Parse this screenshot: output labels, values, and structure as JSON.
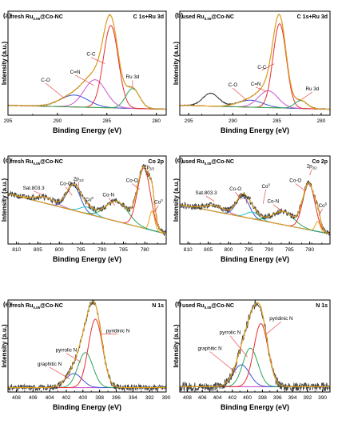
{
  "figure": {
    "x_axis_title": "Binding Energy (eV)",
    "y_axis_title": "Intensity (a.u.)"
  },
  "chart_data": [
    {
      "id": "a",
      "type": "line",
      "letter": "(a)",
      "sample_prefix": "fresh Ru",
      "sample_sub": "0.05",
      "sample_suffix": "@Co-NC",
      "region": "C 1s+Ru 3d",
      "xlim": [
        295,
        279
      ],
      "xticks": [
        295,
        290,
        285,
        280
      ],
      "ylim": [
        0,
        1.05
      ],
      "background": {
        "color": "#e8a317",
        "y": [
          0.1,
          0.06
        ]
      },
      "experimental": {
        "color": "#222222",
        "noise": 0.004,
        "seed": 11
      },
      "fit": {
        "color": "#e8a317"
      },
      "peaks": [
        {
          "center": 288.3,
          "height": 0.12,
          "width": 1.4,
          "color": "#3a55d6"
        },
        {
          "center": 286.2,
          "height": 0.28,
          "width": 1.1,
          "color": "#cc55cc"
        },
        {
          "center": 284.6,
          "height": 0.83,
          "width": 0.75,
          "color": "#e83030"
        },
        {
          "center": 282.4,
          "height": 0.2,
          "width": 0.7,
          "color": "#2aa55a"
        }
      ],
      "labels": [
        {
          "text": "C-C",
          "x": 286.6,
          "y": 0.6,
          "lx": 285.2,
          "ly": 0.52
        },
        {
          "text": "C=N",
          "x": 288.2,
          "y": 0.42,
          "lx": 286.3,
          "ly": 0.3
        },
        {
          "text": "C-O",
          "x": 291.2,
          "y": 0.34,
          "lx": 289.3,
          "ly": 0.17
        },
        {
          "text": "Ru 3d",
          "x": 282.4,
          "y": 0.37,
          "lx": 282.4,
          "ly": 0.28
        }
      ]
    },
    {
      "id": "b",
      "type": "line",
      "letter": "(b)",
      "sample_prefix": "used Ru",
      "sample_sub": "0.05",
      "sample_suffix": "@Co-NC",
      "region": "C 1s+Ru 3d",
      "xlim": [
        296,
        279
      ],
      "xticks": [
        295,
        290,
        285,
        280
      ],
      "ylim": [
        0,
        1.05
      ],
      "background": {
        "color": "#e8a317",
        "y": [
          0.1,
          0.06
        ]
      },
      "experimental": {
        "color": "#222222",
        "noise": 0.004,
        "seed": 12
      },
      "fit": {
        "color": "#e8a317"
      },
      "extra_raw_peaks": [
        {
          "center": 292.5,
          "height": 0.13,
          "width": 0.9
        }
      ],
      "peaks": [
        {
          "center": 288.0,
          "height": 0.07,
          "width": 1.4,
          "color": "#3a55d6"
        },
        {
          "center": 286.0,
          "height": 0.17,
          "width": 1.1,
          "color": "#cc55cc"
        },
        {
          "center": 284.7,
          "height": 0.85,
          "width": 0.75,
          "color": "#e83030"
        },
        {
          "center": 282.3,
          "height": 0.08,
          "width": 0.7,
          "color": "#2aa55a"
        }
      ],
      "labels": [
        {
          "text": "C-C",
          "x": 286.7,
          "y": 0.47,
          "lx": 285.3,
          "ly": 0.52
        },
        {
          "text": "C=N",
          "x": 287.4,
          "y": 0.3,
          "lx": 286.2,
          "ly": 0.24
        },
        {
          "text": "C-O",
          "x": 290.0,
          "y": 0.29,
          "lx": 288.4,
          "ly": 0.15
        },
        {
          "text": "Ru 3d",
          "x": 281.0,
          "y": 0.25,
          "lx": 282.2,
          "ly": 0.16
        }
      ]
    },
    {
      "id": "c",
      "type": "line",
      "letter": "(c)",
      "sample_prefix": "fresh Ru",
      "sample_sub": "0.05",
      "sample_suffix": "@Co-NC",
      "region": "Co 2p",
      "xlim": [
        812,
        775
      ],
      "xticks": [
        810,
        805,
        800,
        795,
        790,
        785,
        780
      ],
      "ylim": [
        0,
        1.05
      ],
      "background": {
        "color": "#20c0c8",
        "y": [
          0.6,
          0.12
        ]
      },
      "experimental": {
        "color": "#444444",
        "noise": 0.035,
        "seed": 21
      },
      "fit": {
        "color": "#e8a317"
      },
      "peaks": [
        {
          "center": 803.3,
          "height": 0.07,
          "width": 2.5,
          "color": "#c060c0"
        },
        {
          "center": 796.7,
          "height": 0.3,
          "width": 1.6,
          "color": "#3a55d6"
        },
        {
          "center": 793.5,
          "height": 0.08,
          "width": 1.6,
          "color": "#20c0c8"
        },
        {
          "center": 786.5,
          "height": 0.24,
          "width": 2.6,
          "color": "#2aa55a"
        },
        {
          "center": 780.2,
          "height": 0.72,
          "width": 1.5,
          "color": "#e83030"
        },
        {
          "center": 778.3,
          "height": 0.23,
          "width": 0.6,
          "color": "#e8a317"
        }
      ],
      "labels": [
        {
          "text": "Sat.803.3",
          "x": 806.0,
          "y": 0.65,
          "lx": 803.5,
          "ly": 0.58
        },
        {
          "text": "Co-O",
          "x": 798.5,
          "y": 0.7,
          "lx": 797.0,
          "ly": 0.58
        },
        {
          "text": "2p",
          "sub": "1/2",
          "x": 795.5,
          "y": 0.76,
          "lx": 795.5,
          "ly": 0.68
        },
        {
          "text": "Co",
          "sup": "0",
          "x": 793.0,
          "y": 0.51,
          "lx": 793.0,
          "ly": 0.43
        },
        {
          "text": "Co-N",
          "x": 788.5,
          "y": 0.57,
          "lx": 787.0,
          "ly": 0.46
        },
        {
          "text": "Co-O",
          "x": 783.0,
          "y": 0.74,
          "lx": 781.2,
          "ly": 0.65
        },
        {
          "text": "2p",
          "sub": "3/2",
          "x": 779.0,
          "y": 0.9,
          "lx": 779.8,
          "ly": 0.82
        },
        {
          "text": "Co",
          "sup": "0",
          "x": 776.8,
          "y": 0.48,
          "lx": 777.8,
          "ly": 0.38
        }
      ]
    },
    {
      "id": "d",
      "type": "line",
      "letter": "(d)",
      "sample_prefix": "used Ru",
      "sample_sub": "0.05",
      "sample_suffix": "@Co-NC",
      "region": "Co 2p",
      "xlim": [
        812,
        775
      ],
      "xticks": [
        810,
        805,
        800,
        795,
        790,
        785,
        780
      ],
      "ylim": [
        0,
        1.05
      ],
      "background": {
        "color": "#20c0c8",
        "y": [
          0.47,
          0.12
        ]
      },
      "experimental": {
        "color": "#444444",
        "noise": 0.035,
        "seed": 22
      },
      "fit": {
        "color": "#e8a317"
      },
      "peaks": [
        {
          "center": 803.3,
          "height": 0.07,
          "width": 2.5,
          "color": "#c060c0"
        },
        {
          "center": 796.5,
          "height": 0.25,
          "width": 1.6,
          "color": "#3a55d6"
        },
        {
          "center": 794.0,
          "height": 0.08,
          "width": 1.6,
          "color": "#20c0c8"
        },
        {
          "center": 786.5,
          "height": 0.16,
          "width": 2.6,
          "color": "#2aa55a"
        },
        {
          "center": 780.2,
          "height": 0.55,
          "width": 1.5,
          "color": "#e83030"
        },
        {
          "center": 778.0,
          "height": 0.12,
          "width": 0.6,
          "color": "#e8a317"
        }
      ],
      "labels": [
        {
          "text": "Sat.803.3",
          "x": 805.5,
          "y": 0.59,
          "lx": 803.5,
          "ly": 0.51
        },
        {
          "text": "Co-O",
          "x": 798.3,
          "y": 0.64,
          "lx": 797.0,
          "ly": 0.53
        },
        {
          "text": "2p",
          "sub": "1/2",
          "x": 795.7,
          "y": 0.55,
          "lx": 795.5,
          "ly": 0.48
        },
        {
          "text": "Co-N",
          "x": 789.0,
          "y": 0.49,
          "lx": 787.0,
          "ly": 0.4
        },
        {
          "text": "Co",
          "sup": "0",
          "x": 790.8,
          "y": 0.67,
          "lx": 791.5,
          "ly": 0.48
        },
        {
          "text": "Co-O",
          "x": 783.5,
          "y": 0.74,
          "lx": 781.0,
          "ly": 0.63
        },
        {
          "text": "2p",
          "sub": "3/2",
          "x": 779.5,
          "y": 0.91,
          "lx": 780.0,
          "ly": 0.82
        },
        {
          "text": "Co",
          "sup": "0",
          "x": 776.8,
          "y": 0.44,
          "lx": 777.8,
          "ly": 0.34
        }
      ]
    },
    {
      "id": "e",
      "type": "line",
      "letter": "(e)",
      "sample_prefix": "fresh Ru",
      "sample_sub": "0.05",
      "sample_suffix": "@Co-NC",
      "region": "N 1s",
      "xlim": [
        409,
        390
      ],
      "xticks": [
        408,
        406,
        404,
        402,
        400,
        398,
        396,
        394,
        392,
        390
      ],
      "ylim": [
        0,
        1.05
      ],
      "background": {
        "color": "#cc55cc",
        "y": [
          0.05,
          0.05
        ]
      },
      "experimental": {
        "color": "#444444",
        "noise": 0.035,
        "seed": 31
      },
      "fit": {
        "color": "#e8a317"
      },
      "peaks": [
        {
          "center": 401.1,
          "height": 0.16,
          "width": 1.0,
          "color": "#3a55d6"
        },
        {
          "center": 399.7,
          "height": 0.4,
          "width": 0.9,
          "color": "#2aa55a"
        },
        {
          "center": 398.5,
          "height": 0.78,
          "width": 0.85,
          "color": "#e83030"
        }
      ],
      "labels": [
        {
          "text": "pyridinic N",
          "x": 395.8,
          "y": 0.68,
          "lx": 397.8,
          "ly": 0.66
        },
        {
          "text": "pyrrolic N",
          "x": 402.0,
          "y": 0.46,
          "lx": 400.2,
          "ly": 0.34
        },
        {
          "text": "graphitic N",
          "x": 404.0,
          "y": 0.3,
          "lx": 401.6,
          "ly": 0.15
        }
      ]
    },
    {
      "id": "f",
      "type": "line",
      "letter": "(f)",
      "sample_prefix": "used Ru",
      "sample_sub": "0.05",
      "sample_suffix": "@Co-NC",
      "region": "N 1s",
      "xlim": [
        409,
        389
      ],
      "xticks": [
        408,
        406,
        404,
        402,
        400,
        398,
        396,
        394,
        392,
        390
      ],
      "ylim": [
        0,
        1.05
      ],
      "background": {
        "color": "#cc55cc",
        "y": [
          0.06,
          0.06
        ]
      },
      "experimental": {
        "color": "#444444",
        "noise": 0.05,
        "seed": 32
      },
      "fit": {
        "color": "#e8a317"
      },
      "peaks": [
        {
          "center": 400.8,
          "height": 0.25,
          "width": 1.1,
          "color": "#3a55d6"
        },
        {
          "center": 399.6,
          "height": 0.44,
          "width": 1.0,
          "color": "#2aa55a"
        },
        {
          "center": 398.2,
          "height": 0.72,
          "width": 0.95,
          "color": "#e83030"
        }
      ],
      "labels": [
        {
          "text": "pyridinic N",
          "x": 395.5,
          "y": 0.82,
          "lx": 397.5,
          "ly": 0.66
        },
        {
          "text": "pyrrolic N",
          "x": 402.3,
          "y": 0.66,
          "lx": 400.0,
          "ly": 0.4
        },
        {
          "text": "graphitic N",
          "x": 405.0,
          "y": 0.48,
          "lx": 401.5,
          "ly": 0.22
        }
      ]
    }
  ]
}
